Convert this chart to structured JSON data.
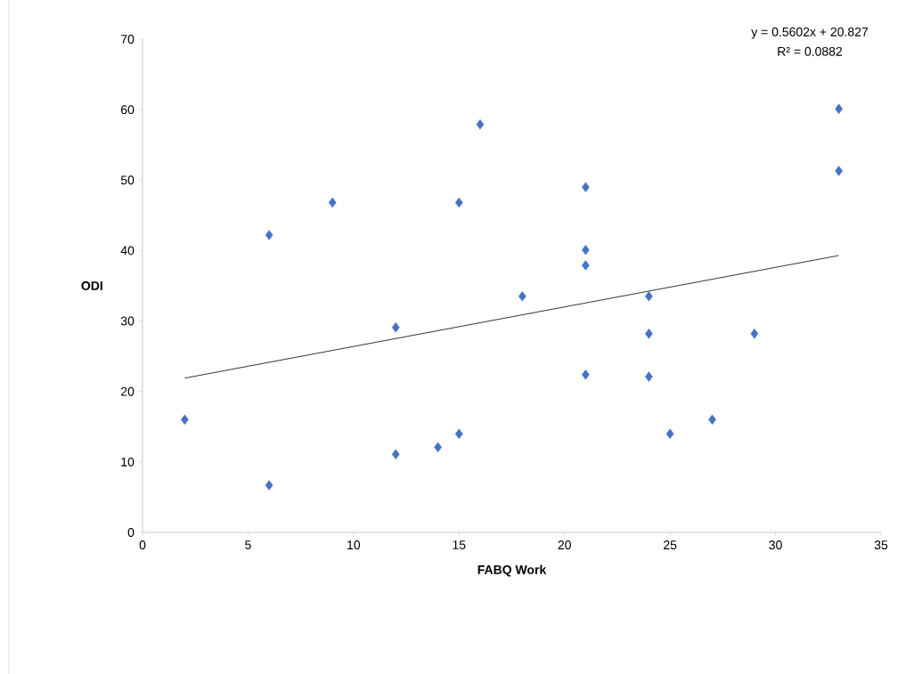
{
  "chart_data": {
    "type": "scatter",
    "xlabel": "FABQ Work",
    "ylabel": "ODI",
    "xlim": [
      0,
      35
    ],
    "ylim": [
      0,
      70
    ],
    "xticks": [
      0,
      5,
      10,
      15,
      20,
      25,
      30,
      35
    ],
    "yticks": [
      0,
      10,
      20,
      30,
      40,
      50,
      60,
      70
    ],
    "grid": false,
    "marker": "diamond",
    "series": [
      {
        "color": "#4472c4",
        "x": [
          2,
          6,
          6,
          9,
          12,
          12,
          14,
          15,
          15,
          16,
          18,
          21,
          21,
          21,
          21,
          24,
          24,
          24,
          25,
          27,
          29,
          33,
          33
        ],
        "values": [
          16.0,
          6.7,
          42.2,
          46.8,
          29.1,
          11.1,
          12.1,
          14.0,
          46.8,
          57.9,
          33.5,
          49.0,
          40.1,
          37.9,
          22.4,
          33.5,
          28.2,
          22.1,
          14.0,
          16.0,
          28.2,
          60.1,
          51.3
        ]
      },
      {
        "type": "line",
        "color": "#000000",
        "marker": "none",
        "x": [
          2,
          33
        ],
        "values": [
          21.9,
          39.3
        ]
      }
    ],
    "annotations": [
      "y = 0.5602x + 20.827",
      "R² = 0.0882"
    ]
  }
}
